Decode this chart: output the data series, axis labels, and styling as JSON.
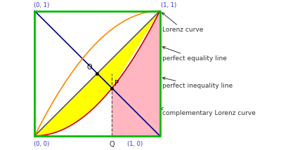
{
  "box_color": "#00bb00",
  "equality_line_color": "#555555",
  "inequality_line_color": "#000080",
  "lorenz_color": "#cc0000",
  "complementary_color": "#ff8800",
  "yellow_fill": "#ffff00",
  "pink_fill": "#ffb6c1",
  "dashed_color": "#555555",
  "corner_label_color": "#3333cc",
  "annotation_color": "#333333",
  "point_color": "#000000",
  "annotation_lorenz": "Lorenz curve",
  "annotation_equality": "perfect equality line",
  "annotation_inequality": "perfect inequality line",
  "annotation_comp": "complementary Lorenz curve"
}
